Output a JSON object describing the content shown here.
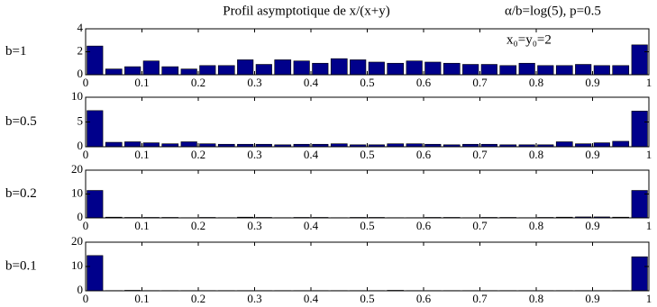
{
  "chart_data": [
    {
      "type": "histogram",
      "title": "Profil asymptotique de x/(x+y)",
      "annotations": [
        "α/b=log(5), p=0.5",
        "x₀=y₀=2"
      ],
      "label": "b=1",
      "color": "#00008b",
      "bins": [
        0,
        0.033,
        0.067,
        0.1,
        0.133,
        0.167,
        0.2,
        0.233,
        0.267,
        0.3,
        0.333,
        0.367,
        0.4,
        0.433,
        0.467,
        0.5,
        0.533,
        0.567,
        0.6,
        0.633,
        0.667,
        0.7,
        0.733,
        0.767,
        0.8,
        0.833,
        0.867,
        0.9,
        0.933,
        0.967,
        1
      ],
      "values": [
        2.5,
        0.5,
        0.7,
        1.2,
        0.7,
        0.5,
        0.8,
        0.8,
        1.3,
        0.9,
        1.3,
        1.2,
        1.0,
        1.4,
        1.3,
        1.1,
        1.0,
        1.2,
        1.1,
        1.0,
        0.9,
        0.9,
        0.8,
        1.0,
        0.8,
        0.8,
        0.9,
        0.8,
        0.8,
        2.6
      ],
      "xlim": [
        0,
        1
      ],
      "xticks": [
        0,
        0.1,
        0.2,
        0.3,
        0.4,
        0.5,
        0.6,
        0.7,
        0.8,
        0.9,
        1
      ],
      "ylim": [
        0,
        4
      ],
      "yticks": [
        0,
        2,
        4
      ]
    },
    {
      "type": "histogram",
      "label": "b=0.5",
      "color": "#00008b",
      "bins": [
        0,
        0.033,
        0.067,
        0.1,
        0.133,
        0.167,
        0.2,
        0.233,
        0.267,
        0.3,
        0.333,
        0.367,
        0.4,
        0.433,
        0.467,
        0.5,
        0.533,
        0.567,
        0.6,
        0.633,
        0.667,
        0.7,
        0.733,
        0.767,
        0.8,
        0.833,
        0.867,
        0.9,
        0.933,
        0.967,
        1
      ],
      "values": [
        7.3,
        0.9,
        1.0,
        0.8,
        0.6,
        1.0,
        0.6,
        0.5,
        0.5,
        0.5,
        0.4,
        0.5,
        0.5,
        0.6,
        0.4,
        0.4,
        0.6,
        0.6,
        0.5,
        0.4,
        0.5,
        0.5,
        0.4,
        0.4,
        0.4,
        1.0,
        0.6,
        0.8,
        1.1,
        7.2
      ],
      "xlim": [
        0,
        1
      ],
      "xticks": [
        0,
        0.1,
        0.2,
        0.3,
        0.4,
        0.5,
        0.6,
        0.7,
        0.8,
        0.9,
        1
      ],
      "ylim": [
        0,
        10
      ],
      "yticks": [
        0,
        5,
        10
      ]
    },
    {
      "type": "histogram",
      "label": "b=0.2",
      "color": "#00008b",
      "bins": [
        0,
        0.033,
        0.067,
        0.1,
        0.133,
        0.167,
        0.2,
        0.233,
        0.267,
        0.3,
        0.333,
        0.367,
        0.4,
        0.433,
        0.467,
        0.5,
        0.533,
        0.567,
        0.6,
        0.633,
        0.667,
        0.7,
        0.733,
        0.767,
        0.8,
        0.833,
        0.867,
        0.9,
        0.933,
        0.967,
        1
      ],
      "values": [
        11.5,
        0.3,
        0.2,
        0.2,
        0.2,
        0.1,
        0.2,
        0.1,
        0.3,
        0.2,
        0.1,
        0.2,
        0.2,
        0.1,
        0.2,
        0.2,
        0.1,
        0.1,
        0.2,
        0.2,
        0.1,
        0.2,
        0.2,
        0.1,
        0.2,
        0.3,
        0.4,
        0.4,
        0.3,
        11.5
      ],
      "xlim": [
        0,
        1
      ],
      "xticks": [
        0,
        0.1,
        0.2,
        0.3,
        0.4,
        0.5,
        0.6,
        0.7,
        0.8,
        0.9,
        1
      ],
      "ylim": [
        0,
        20
      ],
      "yticks": [
        0,
        10,
        20
      ]
    },
    {
      "type": "histogram",
      "label": "b=0.1",
      "color": "#00008b",
      "bins": [
        0,
        0.033,
        0.067,
        0.1,
        0.133,
        0.167,
        0.2,
        0.233,
        0.267,
        0.3,
        0.333,
        0.367,
        0.4,
        0.433,
        0.467,
        0.5,
        0.533,
        0.567,
        0.6,
        0.633,
        0.667,
        0.7,
        0.733,
        0.767,
        0.8,
        0.833,
        0.867,
        0.9,
        0.933,
        0.967,
        1
      ],
      "values": [
        14.5,
        0.1,
        0.2,
        0.1,
        0.1,
        0.1,
        0.1,
        0.1,
        0.1,
        0.1,
        0.1,
        0.1,
        0.1,
        0.1,
        0.1,
        0.1,
        0.2,
        0.1,
        0.1,
        0.1,
        0.1,
        0.1,
        0.1,
        0.1,
        0.1,
        0.1,
        0.1,
        0.1,
        0.1,
        14
      ],
      "xlim": [
        0,
        1
      ],
      "xticks": [
        0,
        0.1,
        0.2,
        0.3,
        0.4,
        0.5,
        0.6,
        0.7,
        0.8,
        0.9,
        1
      ],
      "ylim": [
        0,
        20
      ],
      "yticks": [
        0,
        10,
        20
      ]
    }
  ]
}
